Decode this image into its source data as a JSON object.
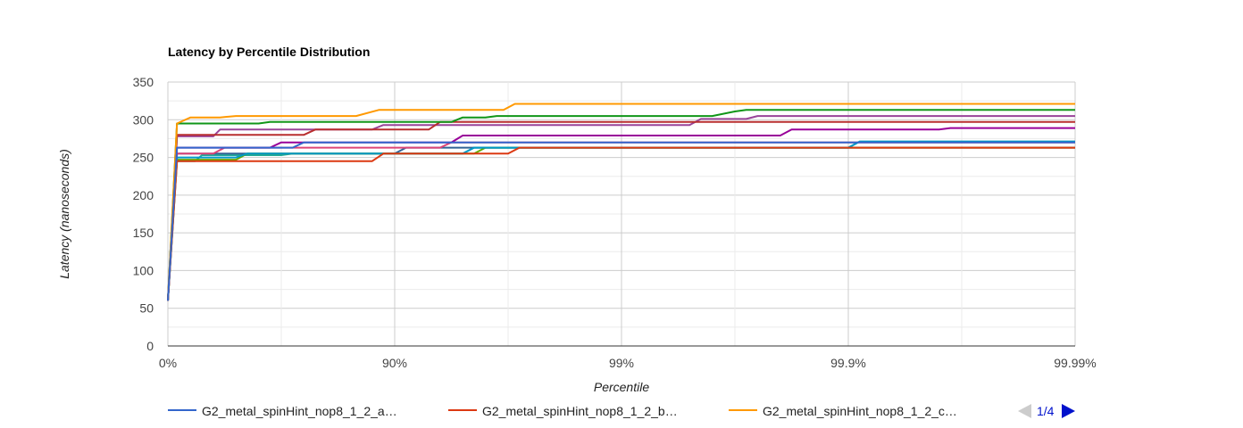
{
  "chart_data": {
    "type": "line",
    "title": "Latency by Percentile Distribution",
    "xlabel": "Percentile",
    "ylabel": "Latency (nanoseconds)",
    "x_ticks": [
      "0%",
      "90%",
      "99%",
      "99.9%",
      "99.99%"
    ],
    "y_ticks": [
      0,
      50,
      100,
      150,
      200,
      250,
      300,
      350
    ],
    "ylim": [
      0,
      350
    ],
    "xlim": [
      0,
      4
    ],
    "grid": true,
    "legend_position": "bottom",
    "legend_pager": "1/4",
    "series": [
      {
        "name": "G2_metal_spinHint_nop8_1_2_a…",
        "color": "#3366cc",
        "x": [
          0,
          0.04,
          0.55,
          0.6,
          4
        ],
        "y": [
          60,
          263,
          263,
          270,
          270
        ]
      },
      {
        "name": "G2_metal_spinHint_nop8_1_2_b…",
        "color": "#dc3912",
        "x": [
          0,
          0.04,
          0.9,
          0.95,
          1.5,
          1.55,
          4
        ],
        "y": [
          60,
          245,
          245,
          255,
          255,
          263,
          263
        ]
      },
      {
        "name": "G2_metal_spinHint_nop8_1_2_c…",
        "color": "#ff9900",
        "x": [
          0,
          0.04,
          0.1,
          0.23,
          0.3,
          0.83,
          0.93,
          1.48,
          1.53,
          4
        ],
        "y": [
          60,
          295,
          303,
          303,
          305,
          305,
          313,
          313,
          321,
          321
        ]
      },
      {
        "name": "",
        "color": "#109618",
        "x": [
          0,
          0.04,
          0.4,
          0.45,
          0.98,
          1.02,
          1.25,
          1.3,
          1.4,
          1.45,
          2.4,
          2.5,
          2.55,
          4
        ],
        "y": [
          60,
          295,
          295,
          297,
          297,
          297,
          297,
          303,
          303,
          305,
          305,
          311,
          313,
          313
        ]
      },
      {
        "name": "",
        "color": "#990099",
        "x": [
          0,
          0.04,
          0.45,
          0.5,
          1.25,
          1.3,
          2.7,
          2.75,
          3.4,
          3.45,
          4
        ],
        "y": [
          60,
          263,
          263,
          270,
          270,
          279,
          279,
          287,
          287,
          289,
          289
        ]
      },
      {
        "name": "",
        "color": "#0099c6",
        "x": [
          0,
          0.04,
          0.3,
          0.35,
          1.3,
          1.35,
          3.0,
          3.05,
          4
        ],
        "y": [
          60,
          250,
          250,
          255,
          255,
          263,
          263,
          271,
          271
        ]
      },
      {
        "name": "",
        "color": "#dd4477",
        "x": [
          0,
          0.04,
          0.2,
          0.25,
          0.6,
          0.65,
          1.2,
          1.25,
          4
        ],
        "y": [
          60,
          255,
          255,
          263,
          263,
          263,
          263,
          270,
          270
        ]
      },
      {
        "name": "",
        "color": "#66aa00",
        "x": [
          0,
          0.04,
          0.3,
          0.35,
          1.35,
          1.4,
          4
        ],
        "y": [
          60,
          247,
          247,
          255,
          255,
          263,
          263
        ]
      },
      {
        "name": "",
        "color": "#b82e2e",
        "x": [
          0,
          0.04,
          0.6,
          0.65,
          0.98,
          1.02,
          1.15,
          1.2,
          4
        ],
        "y": [
          60,
          280,
          280,
          287,
          287,
          287,
          287,
          297,
          297
        ]
      },
      {
        "name": "",
        "color": "#316395",
        "x": [
          0,
          0.04,
          1.0,
          1.05,
          4
        ],
        "y": [
          60,
          255,
          255,
          263,
          263
        ]
      },
      {
        "name": "",
        "color": "#994499",
        "x": [
          0,
          0.04,
          0.2,
          0.23,
          0.9,
          0.95,
          2.3,
          2.35,
          2.55,
          2.6,
          4
        ],
        "y": [
          60,
          278,
          278,
          287,
          287,
          293,
          293,
          301,
          301,
          305,
          305
        ]
      },
      {
        "name": "",
        "color": "#22aa99",
        "x": [
          0,
          0.04,
          0.12,
          0.15,
          0.5,
          0.55,
          1.3,
          1.35,
          3.0,
          3.05,
          4
        ],
        "y": [
          60,
          245,
          245,
          253,
          253,
          255,
          255,
          263,
          263,
          271,
          271
        ]
      }
    ]
  }
}
